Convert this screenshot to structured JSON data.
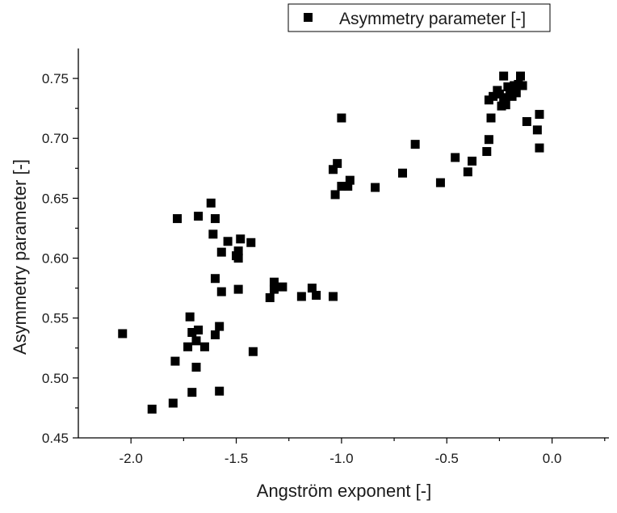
{
  "chart_data": {
    "type": "scatter",
    "xlabel": "Angström exponent [-]",
    "ylabel": "Asymmetry parameter [-]",
    "xlim": [
      -2.25,
      0.27
    ],
    "ylim": [
      0.45,
      0.775
    ],
    "xticks": [
      -2.0,
      -1.5,
      -1.0,
      -0.5,
      0.0
    ],
    "xtick_labels": [
      "-2.0",
      "-1.5",
      "-1.0",
      "-0.5",
      "0.0"
    ],
    "yticks": [
      0.45,
      0.5,
      0.55,
      0.6,
      0.65,
      0.7,
      0.75
    ],
    "ytick_labels": [
      "0.45",
      "0.50",
      "0.55",
      "0.60",
      "0.65",
      "0.70",
      "0.75"
    ],
    "grid": false,
    "legend_position": "top-right",
    "marker": "square",
    "color": "#000000",
    "series": [
      {
        "name": "Asymmetry parameter [-]",
        "points": [
          [
            -2.04,
            0.537
          ],
          [
            -1.9,
            0.474
          ],
          [
            -1.8,
            0.479
          ],
          [
            -1.79,
            0.514
          ],
          [
            -1.78,
            0.633
          ],
          [
            -1.73,
            0.526
          ],
          [
            -1.72,
            0.551
          ],
          [
            -1.71,
            0.538
          ],
          [
            -1.71,
            0.488
          ],
          [
            -1.69,
            0.509
          ],
          [
            -1.69,
            0.531
          ],
          [
            -1.68,
            0.54
          ],
          [
            -1.68,
            0.635
          ],
          [
            -1.65,
            0.526
          ],
          [
            -1.62,
            0.646
          ],
          [
            -1.61,
            0.62
          ],
          [
            -1.6,
            0.583
          ],
          [
            -1.6,
            0.536
          ],
          [
            -1.6,
            0.633
          ],
          [
            -1.58,
            0.543
          ],
          [
            -1.58,
            0.489
          ],
          [
            -1.57,
            0.572
          ],
          [
            -1.57,
            0.605
          ],
          [
            -1.54,
            0.614
          ],
          [
            -1.5,
            0.602
          ],
          [
            -1.49,
            0.606
          ],
          [
            -1.49,
            0.6
          ],
          [
            -1.49,
            0.574
          ],
          [
            -1.48,
            0.616
          ],
          [
            -1.43,
            0.613
          ],
          [
            -1.42,
            0.522
          ],
          [
            -1.34,
            0.567
          ],
          [
            -1.32,
            0.574
          ],
          [
            -1.32,
            0.58
          ],
          [
            -1.28,
            0.576
          ],
          [
            -1.19,
            0.568
          ],
          [
            -1.14,
            0.575
          ],
          [
            -1.12,
            0.569
          ],
          [
            -1.04,
            0.568
          ],
          [
            -1.04,
            0.674
          ],
          [
            -1.03,
            0.653
          ],
          [
            -1.02,
            0.679
          ],
          [
            -1.0,
            0.66
          ],
          [
            -1.0,
            0.717
          ],
          [
            -0.97,
            0.66
          ],
          [
            -0.96,
            0.665
          ],
          [
            -0.84,
            0.659
          ],
          [
            -0.71,
            0.671
          ],
          [
            -0.65,
            0.695
          ],
          [
            -0.53,
            0.663
          ],
          [
            -0.46,
            0.684
          ],
          [
            -0.4,
            0.672
          ],
          [
            -0.38,
            0.681
          ],
          [
            -0.31,
            0.689
          ],
          [
            -0.3,
            0.699
          ],
          [
            -0.3,
            0.732
          ],
          [
            -0.29,
            0.717
          ],
          [
            -0.28,
            0.735
          ],
          [
            -0.26,
            0.74
          ],
          [
            -0.25,
            0.737
          ],
          [
            -0.24,
            0.727
          ],
          [
            -0.23,
            0.734
          ],
          [
            -0.23,
            0.752
          ],
          [
            -0.22,
            0.728
          ],
          [
            -0.21,
            0.743
          ],
          [
            -0.2,
            0.738
          ],
          [
            -0.19,
            0.735
          ],
          [
            -0.18,
            0.744
          ],
          [
            -0.17,
            0.738
          ],
          [
            -0.16,
            0.745
          ],
          [
            -0.15,
            0.752
          ],
          [
            -0.14,
            0.744
          ],
          [
            -0.12,
            0.714
          ],
          [
            -0.07,
            0.707
          ],
          [
            -0.06,
            0.72
          ],
          [
            -0.06,
            0.692
          ]
        ]
      }
    ]
  }
}
